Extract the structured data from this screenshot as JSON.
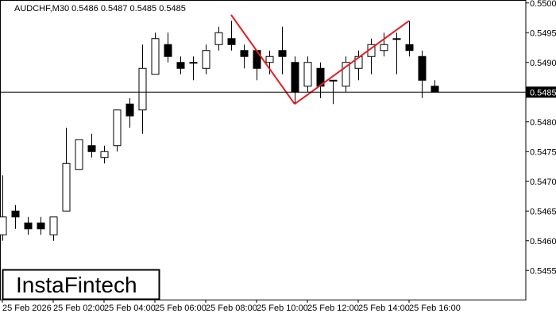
{
  "chart_data": {
    "type": "candlestick",
    "title": "AUDCHF,M30  0.5486 0.5487 0.5485 0.5485",
    "logo": "InstaFintech",
    "categories": [
      "25 Feb 2026",
      null,
      null,
      null,
      "25 Feb 02:00",
      null,
      null,
      null,
      "25 Feb 04:00",
      null,
      null,
      null,
      "25 Feb 06:00",
      null,
      null,
      null,
      "25 Feb 08:00",
      null,
      null,
      null,
      "25 Feb 10:00",
      null,
      null,
      null,
      "25 Feb 12:00",
      null,
      null,
      null,
      "25 Feb 14:00",
      null,
      null,
      null,
      "25 Feb 16:00",
      null,
      null
    ],
    "open": [
      0.5461,
      0.5465,
      0.5463,
      0.5463,
      0.5461,
      0.5465,
      0.5472,
      0.5476,
      0.5474,
      0.5476,
      0.5483,
      0.5482,
      0.5488,
      0.5493,
      0.549,
      0.549,
      0.5489,
      0.5493,
      0.5494,
      0.5492,
      0.5492,
      0.549,
      0.5492,
      0.549,
      0.5486,
      0.5489,
      0.5487,
      0.5486,
      0.5489,
      0.5491,
      0.5492,
      0.5494,
      0.5493,
      0.5491,
      0.5486
    ],
    "high": [
      0.5471,
      0.5466,
      0.5464,
      0.5464,
      0.5464,
      0.5479,
      0.5477,
      0.5478,
      0.5476,
      0.5482,
      0.5484,
      0.5493,
      0.5495,
      0.5495,
      0.5491,
      0.5491,
      0.5493,
      0.5496,
      0.5497,
      0.5493,
      0.5492,
      0.5492,
      0.5496,
      0.5491,
      0.5491,
      0.549,
      0.5487,
      0.5491,
      0.5492,
      0.5494,
      0.5495,
      0.5495,
      0.5497,
      0.5492,
      0.5487
    ],
    "low": [
      0.546,
      0.5462,
      0.5461,
      0.5461,
      0.546,
      0.5465,
      0.5472,
      0.5474,
      0.5473,
      0.5475,
      0.5479,
      0.5478,
      0.5488,
      0.549,
      0.5488,
      0.5487,
      0.5488,
      0.5492,
      0.5492,
      0.5489,
      0.5487,
      0.5488,
      0.5488,
      0.5483,
      0.5485,
      0.5484,
      0.5483,
      0.5485,
      0.5487,
      0.5488,
      0.5491,
      0.5488,
      0.5491,
      0.5484,
      0.5485
    ],
    "close": [
      0.5464,
      0.5464,
      0.5462,
      0.5462,
      0.5464,
      0.5473,
      0.5477,
      0.5475,
      0.5475,
      0.5482,
      0.5481,
      0.5489,
      0.5494,
      0.5491,
      0.5489,
      0.549,
      0.5492,
      0.5495,
      0.5493,
      0.5491,
      0.5489,
      0.5491,
      0.5491,
      0.5485,
      0.549,
      0.5486,
      0.5487,
      0.549,
      0.5491,
      0.5493,
      0.5493,
      0.5494,
      0.5492,
      0.5487,
      0.5485
    ],
    "ylim": [
      0.54501,
      0.55005
    ],
    "yticks": [
      {
        "value": 0.55,
        "label": "0.5500"
      },
      0.5495,
      {
        "value": 0.549,
        "label": "0.5490"
      },
      0.5485,
      {
        "value": 0.548,
        "label": "0.5480"
      },
      0.5475,
      {
        "value": 0.547,
        "label": "0.5470"
      },
      0.5465,
      {
        "value": 0.546,
        "label": "0.5460"
      },
      0.5455
    ],
    "current_price": 0.5485,
    "pattern": {
      "color": "#e31e24",
      "points": [
        {
          "index": 18,
          "value": 0.5498
        },
        {
          "index": 23,
          "value": 0.5483
        },
        {
          "index": 32,
          "value": 0.5497
        }
      ]
    }
  }
}
